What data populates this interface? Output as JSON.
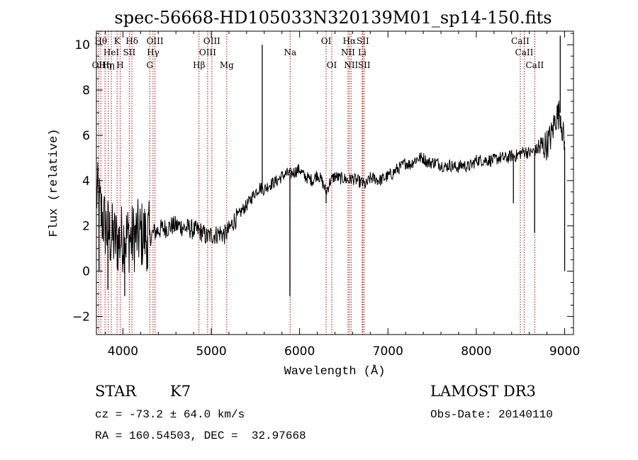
{
  "chart_data": {
    "type": "line",
    "title": "spec-56668-HD105033N320139M01_sp14-150.fits",
    "xlabel": "Wavelength (Å)",
    "ylabel": "Flux (relative)",
    "xlim": [
      3700,
      9100
    ],
    "ylim": [
      -2.8,
      10.6
    ],
    "xticks": [
      4000,
      5000,
      6000,
      7000,
      8000,
      9000
    ],
    "yticks": [
      -2,
      0,
      2,
      4,
      6,
      8,
      10
    ],
    "grid": false,
    "series": [
      {
        "name": "flux",
        "x": [
          3700,
          3750,
          3800,
          3850,
          3900,
          3950,
          4000,
          4050,
          4100,
          4150,
          4200,
          4250,
          4300,
          4350,
          4400,
          4450,
          4500,
          4550,
          4600,
          4650,
          4700,
          4750,
          4800,
          4850,
          4900,
          4950,
          5000,
          5050,
          5100,
          5150,
          5200,
          5250,
          5300,
          5350,
          5400,
          5450,
          5500,
          5550,
          5600,
          5650,
          5700,
          5750,
          5800,
          5850,
          5900,
          5950,
          6000,
          6050,
          6100,
          6150,
          6200,
          6250,
          6300,
          6350,
          6400,
          6450,
          6500,
          6550,
          6600,
          6650,
          6700,
          6750,
          6800,
          6850,
          6900,
          6950,
          7000,
          7050,
          7100,
          7150,
          7200,
          7250,
          7300,
          7350,
          7400,
          7450,
          7500,
          7550,
          7600,
          7650,
          7700,
          7750,
          7800,
          7850,
          7900,
          7950,
          8000,
          8050,
          8100,
          8150,
          8200,
          8250,
          8300,
          8350,
          8400,
          8450,
          8500,
          8550,
          8600,
          8650,
          8700,
          8750,
          8800,
          8850,
          8900,
          8950,
          9000
        ],
        "y": [
          3.5,
          2.6,
          2.0,
          1.6,
          1.4,
          1.3,
          1.5,
          1.5,
          1.4,
          1.6,
          1.6,
          1.6,
          1.5,
          1.7,
          1.8,
          1.9,
          1.9,
          2.0,
          2.0,
          2.0,
          1.9,
          1.9,
          1.8,
          1.8,
          1.7,
          1.5,
          1.6,
          1.6,
          1.7,
          1.6,
          1.8,
          2.2,
          2.4,
          2.7,
          2.9,
          3.2,
          3.5,
          3.7,
          3.6,
          3.8,
          3.9,
          4.0,
          4.2,
          4.3,
          4.3,
          4.4,
          4.5,
          4.2,
          4.1,
          4.0,
          4.3,
          4.0,
          3.5,
          4.0,
          4.2,
          4.1,
          4.1,
          4.0,
          4.1,
          4.0,
          3.9,
          3.8,
          4.1,
          4.1,
          4.0,
          4.1,
          4.2,
          4.3,
          4.5,
          4.6,
          4.8,
          4.7,
          4.9,
          5.0,
          5.0,
          4.8,
          4.8,
          4.8,
          4.7,
          4.6,
          4.7,
          4.6,
          4.6,
          4.7,
          4.6,
          4.7,
          4.9,
          4.9,
          4.9,
          4.9,
          4.9,
          5.0,
          5.0,
          5.0,
          5.1,
          5.1,
          5.2,
          5.3,
          5.2,
          5.3,
          5.4,
          5.5,
          5.6,
          6.0,
          6.8,
          7.0,
          5.5
        ]
      }
    ],
    "spikes": [
      {
        "x": 3730,
        "y": 0.0
      },
      {
        "x": 3830,
        "y": -0.8
      },
      {
        "x": 4020,
        "y": -1.1
      },
      {
        "x": 4280,
        "y": 0.1
      },
      {
        "x": 5577,
        "y": 10.0
      },
      {
        "x": 5890,
        "y": -1.1
      },
      {
        "x": 6300,
        "y": 3.0
      },
      {
        "x": 8420,
        "y": 3.0
      },
      {
        "x": 8660,
        "y": 1.7
      },
      {
        "x": 8950,
        "y": 10.4
      },
      {
        "x": 9000,
        "y": 0.0
      }
    ],
    "lines": [
      {
        "x": 3726,
        "label": "OII",
        "row": 2
      },
      {
        "x": 3750,
        "label": "Hθ",
        "row": 0
      },
      {
        "x": 3798,
        "label": "Hη",
        "row": 2
      },
      {
        "x": 3835,
        "label": "Hη",
        "row": 2
      },
      {
        "x": 3869,
        "label": "HeI",
        "row": 1
      },
      {
        "x": 3934,
        "label": "K",
        "row": 0
      },
      {
        "x": 3969,
        "label": "H",
        "row": 2
      },
      {
        "x": 4072,
        "label": "SII",
        "row": 1
      },
      {
        "x": 4102,
        "label": "Hδ",
        "row": 0
      },
      {
        "x": 4304,
        "label": "G",
        "row": 2
      },
      {
        "x": 4341,
        "label": "Hγ",
        "row": 1
      },
      {
        "x": 4363,
        "label": "OIII",
        "row": 0
      },
      {
        "x": 4861,
        "label": "Hβ",
        "row": 2
      },
      {
        "x": 4959,
        "label": "OIII",
        "row": 1
      },
      {
        "x": 5007,
        "label": "OIII",
        "row": 0
      },
      {
        "x": 5175,
        "label": "Mg",
        "row": 2
      },
      {
        "x": 5893,
        "label": "Na",
        "row": 1
      },
      {
        "x": 6300,
        "label": "OI",
        "row": 0
      },
      {
        "x": 6364,
        "label": "OI",
        "row": 2
      },
      {
        "x": 6548,
        "label": "NII",
        "row": 1
      },
      {
        "x": 6563,
        "label": "Hα",
        "row": 0
      },
      {
        "x": 6583,
        "label": "NII",
        "row": 2
      },
      {
        "x": 6708,
        "label": "Li",
        "row": 1
      },
      {
        "x": 6716,
        "label": "SII",
        "row": 0
      },
      {
        "x": 6731,
        "label": "SII",
        "row": 2
      },
      {
        "x": 8498,
        "label": "CaII",
        "row": 0
      },
      {
        "x": 8542,
        "label": "CaII",
        "row": 1
      },
      {
        "x": 8662,
        "label": "CaII",
        "row": 2
      }
    ]
  },
  "info": {
    "obj_class": "STAR",
    "subclass": "K7",
    "survey": "LAMOST DR3",
    "redshift": "cz = -73.2 ± 64.0 km/s",
    "obs_date": "Obs-Date: 20140110",
    "coords": "RA = 160.54503, DEC =  32.97668"
  }
}
